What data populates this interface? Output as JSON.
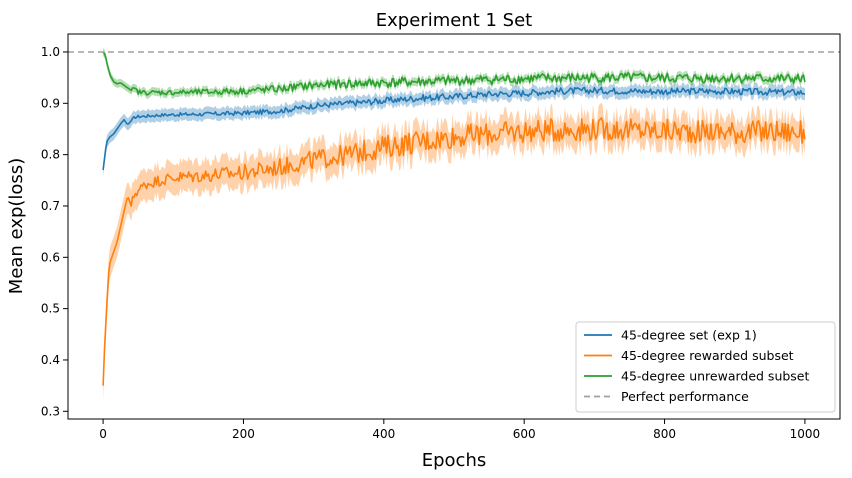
{
  "chart_data": {
    "type": "line",
    "title": "Experiment 1 Set",
    "xlabel": "Epochs",
    "ylabel": "Mean exp(loss)",
    "xlim": [
      -50,
      1050
    ],
    "ylim": [
      0.285,
      1.035
    ],
    "xticks": [
      0,
      200,
      400,
      600,
      800,
      1000
    ],
    "yticks": [
      0.3,
      0.4,
      0.5,
      0.6,
      0.7,
      0.8,
      0.9,
      1.0
    ],
    "xtick_labels": [
      "0",
      "200",
      "400",
      "600",
      "800",
      "1000"
    ],
    "ytick_labels": [
      "0.3",
      "0.4",
      "0.5",
      "0.6",
      "0.7",
      "0.8",
      "0.9",
      "1.0"
    ],
    "grid": false,
    "legend_position": "lower-right",
    "series": [
      {
        "name": "45-degree set (exp 1)",
        "color": "#1f77b4",
        "band": 0.012,
        "x": [
          0,
          5,
          10,
          15,
          20,
          25,
          30,
          35,
          40,
          45,
          50,
          60,
          80,
          100,
          150,
          200,
          250,
          300,
          350,
          400,
          450,
          500,
          550,
          600,
          650,
          700,
          750,
          800,
          850,
          900,
          950,
          1000
        ],
        "y": [
          0.77,
          0.825,
          0.835,
          0.84,
          0.85,
          0.86,
          0.868,
          0.858,
          0.866,
          0.873,
          0.874,
          0.875,
          0.877,
          0.878,
          0.879,
          0.881,
          0.885,
          0.895,
          0.9,
          0.905,
          0.91,
          0.913,
          0.918,
          0.92,
          0.924,
          0.925,
          0.924,
          0.923,
          0.924,
          0.923,
          0.922,
          0.921
        ]
      },
      {
        "name": "45-degree rewarded subset",
        "color": "#ff7f0e",
        "band": 0.03,
        "x": [
          0,
          2,
          5,
          8,
          10,
          15,
          20,
          25,
          30,
          35,
          40,
          45,
          50,
          60,
          80,
          100,
          150,
          200,
          250,
          300,
          350,
          400,
          450,
          500,
          550,
          600,
          650,
          700,
          750,
          800,
          850,
          900,
          950,
          1000
        ],
        "y": [
          0.35,
          0.42,
          0.5,
          0.57,
          0.59,
          0.61,
          0.63,
          0.66,
          0.69,
          0.72,
          0.7,
          0.725,
          0.73,
          0.742,
          0.75,
          0.755,
          0.76,
          0.765,
          0.775,
          0.79,
          0.8,
          0.815,
          0.825,
          0.835,
          0.84,
          0.845,
          0.848,
          0.85,
          0.848,
          0.846,
          0.845,
          0.844,
          0.845,
          0.843
        ]
      },
      {
        "name": "45-degree unrewarded subset",
        "color": "#2ca02c",
        "band": 0.008,
        "x": [
          0,
          3,
          6,
          10,
          15,
          20,
          25,
          30,
          35,
          40,
          45,
          50,
          60,
          80,
          100,
          150,
          200,
          250,
          300,
          350,
          400,
          450,
          500,
          550,
          600,
          650,
          700,
          750,
          800,
          850,
          900,
          950,
          1000
        ],
        "y": [
          1.0,
          0.995,
          0.975,
          0.955,
          0.942,
          0.938,
          0.94,
          0.935,
          0.93,
          0.925,
          0.928,
          0.922,
          0.921,
          0.921,
          0.921,
          0.922,
          0.924,
          0.928,
          0.935,
          0.938,
          0.94,
          0.942,
          0.944,
          0.946,
          0.948,
          0.949,
          0.95,
          0.95,
          0.949,
          0.949,
          0.949,
          0.948,
          0.947
        ]
      },
      {
        "name": "Perfect performance",
        "color": "#a0a0a0",
        "dashed": true,
        "y": 1.0
      }
    ]
  }
}
